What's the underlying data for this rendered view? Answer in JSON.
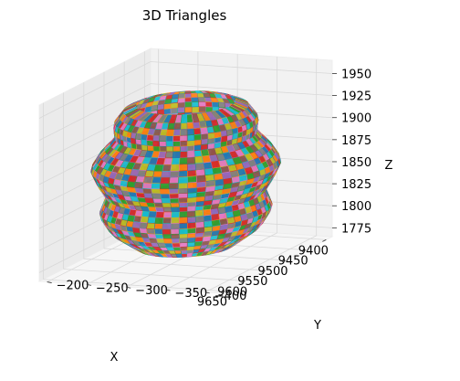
{
  "chart_data": {
    "type": "3d-surface",
    "title": "3D Triangles",
    "xlabel": "X",
    "ylabel": "Y",
    "zlabel": "Z",
    "xticks": [
      9400,
      9450,
      9500,
      9550,
      9600,
      9650
    ],
    "yticks": [
      -200,
      -250,
      -300,
      -350,
      -400
    ],
    "zticks": [
      1775,
      1800,
      1825,
      1850,
      1875,
      1900,
      1925,
      1950
    ],
    "xtick_labels": [
      "9400",
      "9450",
      "9500",
      "9550",
      "9600",
      "9650"
    ],
    "ytick_labels": [
      "−200",
      "−250",
      "−300",
      "−350",
      "−400"
    ],
    "ztick_labels": [
      "1775",
      "1800",
      "1825",
      "1850",
      "1875",
      "1900",
      "1925",
      "1950"
    ],
    "xlim": [
      9385,
      9660
    ],
    "ylim": [
      -420,
      -190
    ],
    "zlim": [
      1765,
      1965
    ],
    "surface": {
      "shape": "stacked tori (lathe surface)",
      "center": [
        9522,
        -305
      ],
      "z_range": [
        1780,
        1945
      ],
      "profile": [
        {
          "z": 1780,
          "r": 55
        },
        {
          "z": 1800,
          "r": 85
        },
        {
          "z": 1820,
          "r": 98
        },
        {
          "z": 1840,
          "r": 90
        },
        {
          "z": 1855,
          "r": 100
        },
        {
          "z": 1872,
          "r": 108
        },
        {
          "z": 1890,
          "r": 96
        },
        {
          "z": 1905,
          "r": 80
        },
        {
          "z": 1922,
          "r": 82
        },
        {
          "z": 1937,
          "r": 70
        },
        {
          "z": 1945,
          "r": 48
        }
      ],
      "colors": [
        "#1f77b4",
        "#ff7f0e",
        "#2ca02c",
        "#d62728",
        "#9467bd",
        "#8c564b",
        "#e377c2",
        "#7f7f7f",
        "#bcbd22",
        "#17becf"
      ]
    }
  }
}
